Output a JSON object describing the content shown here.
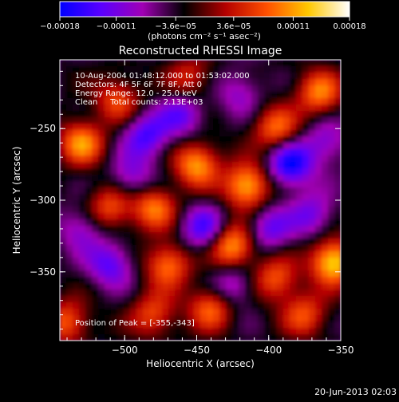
{
  "chart_data": {
    "type": "heatmap",
    "title": "Reconstructed RHESSI Image",
    "xlabel": "Heliocentric X (arcsec)",
    "ylabel": "Heliocentric Y (arcsec)",
    "xlim": [
      -545,
      -350
    ],
    "ylim": [
      -398,
      -202
    ],
    "xticks": [
      -500,
      -450,
      -400,
      -350
    ],
    "yticks": [
      -250,
      -300,
      -350
    ],
    "xtick_labels": [
      "−500",
      "−450",
      "−400",
      "−350"
    ],
    "ytick_labels": [
      "−250",
      "−300",
      "−350"
    ],
    "colorbar": {
      "min": -0.00018,
      "max": 0.00018,
      "tick_values": [
        -0.00018,
        -0.00011,
        -3.6e-05,
        3.6e-05,
        0.00011,
        0.00018
      ],
      "tick_labels": [
        "−0.00018",
        "−0.00011",
        "−3.6e−05",
        "3.6e−05",
        "0.00011",
        "0.00018"
      ],
      "unit_label": "(photons cm⁻² s⁻¹ asec⁻²)",
      "colors": [
        "#0000ff",
        "#5a00ff",
        "#a000b4",
        "#000000",
        "#b40000",
        "#ff5000",
        "#ffc800",
        "#ffffff"
      ]
    },
    "annotations": [
      "10-Aug-2004 01:48:12.000 to 01:53:02.000",
      "Detectors: 4F 5F 6F 7F 8F, Att 0",
      "Energy Range: 12.0 - 25.0 keV",
      "Clean     Total counts: 2.13E+03"
    ],
    "peak_label": "Position of Peak = [-355,-343]",
    "peak": {
      "x": -355,
      "y": -343
    },
    "sources": [
      {
        "x": -355,
        "y": -343,
        "v": 1.0
      },
      {
        "x": -425,
        "y": -332,
        "v": 0.85
      },
      {
        "x": -415,
        "y": -290,
        "v": 0.9
      },
      {
        "x": -450,
        "y": -275,
        "v": 0.8
      },
      {
        "x": -395,
        "y": -250,
        "v": 0.65
      },
      {
        "x": -365,
        "y": -225,
        "v": 0.7
      },
      {
        "x": -530,
        "y": -260,
        "v": 0.75
      },
      {
        "x": -510,
        "y": -305,
        "v": 0.6
      },
      {
        "x": -480,
        "y": -305,
        "v": 0.7
      },
      {
        "x": -470,
        "y": -345,
        "v": 0.7
      },
      {
        "x": -395,
        "y": -355,
        "v": 0.6
      },
      {
        "x": -440,
        "y": -375,
        "v": 0.65
      },
      {
        "x": -480,
        "y": -380,
        "v": 0.55
      },
      {
        "x": -540,
        "y": -385,
        "v": 0.6
      },
      {
        "x": -375,
        "y": -380,
        "v": 0.55
      },
      {
        "x": -505,
        "y": -230,
        "v": 0.55
      },
      {
        "x": -455,
        "y": -215,
        "v": 0.45
      },
      {
        "x": -385,
        "y": -275,
        "v": -0.8
      },
      {
        "x": -485,
        "y": -255,
        "v": -0.6
      },
      {
        "x": -445,
        "y": -320,
        "v": -0.6
      },
      {
        "x": -510,
        "y": -345,
        "v": -0.55
      },
      {
        "x": -460,
        "y": -240,
        "v": -0.5
      },
      {
        "x": -400,
        "y": -320,
        "v": -0.5
      },
      {
        "x": -370,
        "y": -310,
        "v": -0.45
      },
      {
        "x": -495,
        "y": -285,
        "v": -0.45
      },
      {
        "x": -425,
        "y": -360,
        "v": -0.45
      },
      {
        "x": -530,
        "y": -320,
        "v": -0.4
      },
      {
        "x": -360,
        "y": -260,
        "v": -0.4
      },
      {
        "x": -420,
        "y": -225,
        "v": -0.35
      }
    ]
  },
  "footer_date": "20-Jun-2013 02:03"
}
